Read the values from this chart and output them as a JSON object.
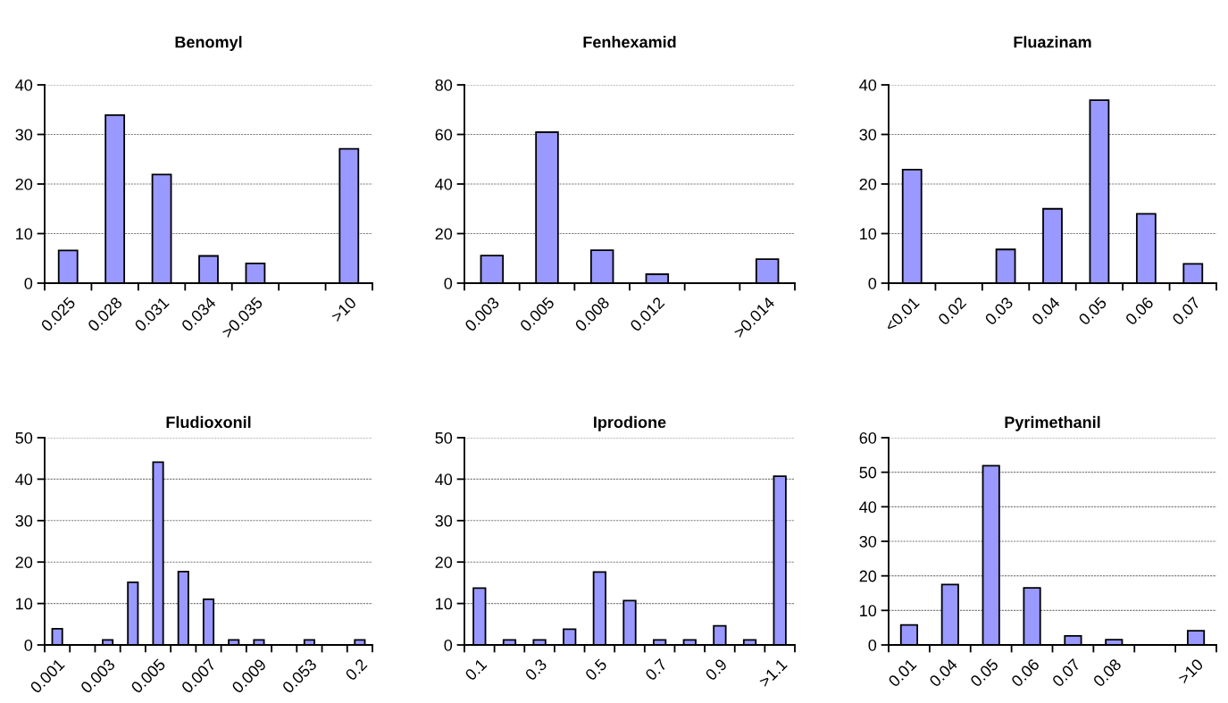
{
  "chart_data": [
    {
      "type": "bar",
      "title": "Benomyl",
      "categories": [
        "0.025",
        "0.028",
        "0.031",
        "0.034",
        ">0.035",
        null,
        ">10"
      ],
      "values": [
        6.6,
        33.9,
        21.9,
        5.5,
        4.0,
        null,
        27.1
      ],
      "color": "#9999ff",
      "ylim": [
        0,
        40
      ],
      "yticks": [
        0,
        10,
        20,
        30,
        40
      ],
      "grid": "y"
    },
    {
      "type": "bar",
      "title": "Fenhexamid",
      "categories": [
        "0.003",
        "0.005",
        "0.008",
        "0.012",
        null,
        ">0.014"
      ],
      "values": [
        11.1,
        60.9,
        13.3,
        3.6,
        null,
        9.7
      ],
      "color": "#9999ff",
      "ylim": [
        0,
        80
      ],
      "yticks": [
        0,
        20,
        40,
        60,
        80
      ],
      "grid": "y"
    },
    {
      "type": "bar",
      "title": "Fluazinam",
      "categories": [
        "<0.01",
        "0.02",
        "0.03",
        "0.04",
        "0.05",
        "0.06",
        "0.07"
      ],
      "values": [
        22.9,
        null,
        6.8,
        15.0,
        36.9,
        14.0,
        3.9
      ],
      "color": "#9999ff",
      "ylim": [
        0,
        40
      ],
      "yticks": [
        0,
        10,
        20,
        30,
        40
      ],
      "grid": "y"
    },
    {
      "type": "bar",
      "title": "Fludioxonil",
      "categories": [
        "0.001",
        null,
        "0.003",
        null,
        "0.005",
        null,
        "0.007",
        null,
        "0.009",
        null,
        "0.053",
        null,
        "0.2"
      ],
      "values": [
        3.9,
        null,
        1.2,
        15.1,
        44.1,
        17.7,
        11.0,
        1.2,
        1.2,
        null,
        1.2,
        null,
        1.2
      ],
      "color": "#9999ff",
      "ylim": [
        0,
        50
      ],
      "yticks": [
        0,
        10,
        20,
        30,
        40,
        50
      ],
      "grid": "y"
    },
    {
      "type": "bar",
      "title": "Iprodione",
      "categories": [
        "0.1",
        null,
        "0.3",
        null,
        "0.5",
        null,
        "0.7",
        null,
        "0.9",
        null,
        ">1.1"
      ],
      "values": [
        13.7,
        1.2,
        1.2,
        3.8,
        17.6,
        10.7,
        1.2,
        1.2,
        4.6,
        1.2,
        40.7
      ],
      "color": "#9999ff",
      "ylim": [
        0,
        50
      ],
      "yticks": [
        0,
        10,
        20,
        30,
        40,
        50
      ],
      "grid": "y"
    },
    {
      "type": "bar",
      "title": "Pyrimethanil",
      "categories": [
        "0.01",
        "0.04",
        "0.05",
        "0.06",
        "0.07",
        "0.08",
        null,
        ">10"
      ],
      "values": [
        5.8,
        17.5,
        51.9,
        16.5,
        2.6,
        1.5,
        null,
        4.1
      ],
      "color": "#9999ff",
      "ylim": [
        0,
        60
      ],
      "yticks": [
        0,
        10,
        20,
        30,
        40,
        50,
        60
      ],
      "grid": "y"
    }
  ]
}
